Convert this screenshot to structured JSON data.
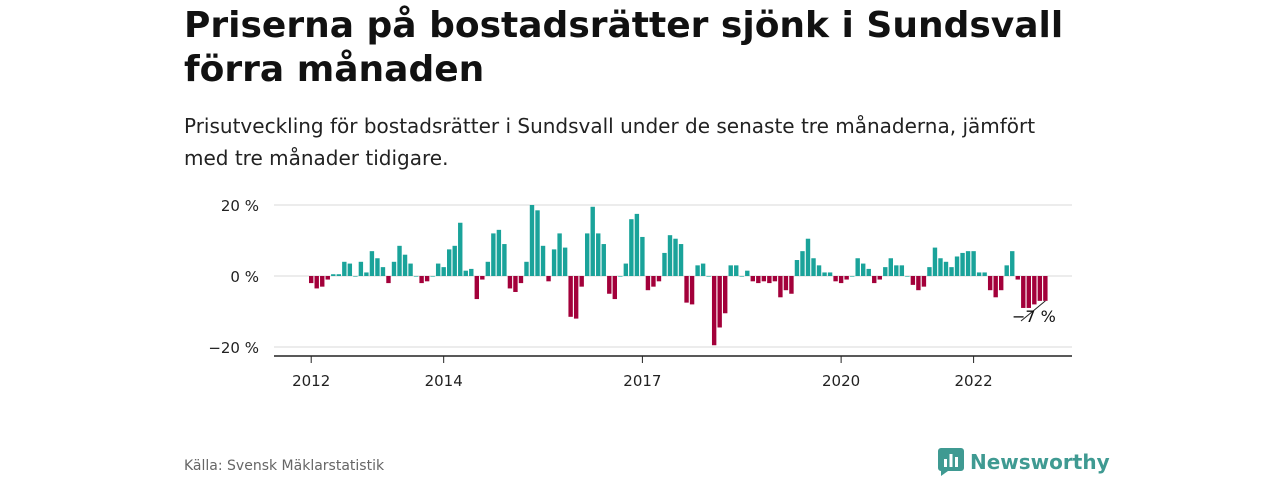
{
  "title": "Priserna på bostadsrätter sjönk i Sundsvall förra månaden",
  "subtitle": "Prisutveckling för bostadsrätter i Sundsvall under de senaste tre månaderna, jämfört med tre månader tidigare.",
  "source": "Källa: Svensk Mäklarstatistik",
  "brand": "Newsworthy",
  "colors": {
    "positive": "#1aa39a",
    "negative": "#a3003a",
    "grid": "#d9d9d9",
    "axis": "#222222"
  },
  "chart_data": {
    "type": "bar",
    "x_start": "2012-01",
    "x_ticks": [
      "2012",
      "2014",
      "2017",
      "2020",
      "2022"
    ],
    "y_ticks": [
      "20 %",
      "0 %",
      "−20 %"
    ],
    "ylim": [
      -22,
      20
    ],
    "annotation": {
      "label": "−7 %",
      "value": -7
    },
    "values": [
      -2,
      -3.5,
      -3,
      -1,
      0.5,
      0.5,
      4,
      3.5,
      0,
      4,
      1,
      7,
      5,
      2.5,
      -2,
      4,
      8.5,
      6,
      3.5,
      0,
      -2,
      -1.5,
      0,
      3.5,
      2.5,
      7.5,
      8.5,
      15,
      1.5,
      2,
      -6.5,
      -1,
      4,
      12,
      13,
      9,
      -3.5,
      -4.5,
      -2,
      4,
      20,
      18.5,
      8.5,
      -1.5,
      7.5,
      12,
      8,
      -11.5,
      -12,
      -3,
      12,
      19.5,
      12,
      9,
      -5,
      -6.5,
      0,
      3.5,
      16,
      17.5,
      11,
      -4,
      -3,
      -1.5,
      6.5,
      11.5,
      10.5,
      9,
      -7.5,
      -8,
      3,
      3.5,
      0,
      -19.5,
      -14.5,
      -10.5,
      3,
      3,
      0,
      1.5,
      -1.5,
      -2,
      -1.5,
      -2,
      -1.5,
      -6,
      -4,
      -5,
      4.5,
      7,
      10.5,
      5,
      3,
      1,
      1,
      -1.5,
      -2,
      -1,
      0,
      5,
      3.5,
      2,
      -2,
      -1,
      2.5,
      5,
      3,
      3,
      0,
      -2.5,
      -4,
      -3,
      2.5,
      8,
      5,
      4,
      2.5,
      5.5,
      6.5,
      7,
      7,
      1,
      1,
      -4,
      -6,
      -4,
      3,
      7,
      -1,
      -9,
      -9,
      -8,
      -7,
      -7
    ]
  }
}
